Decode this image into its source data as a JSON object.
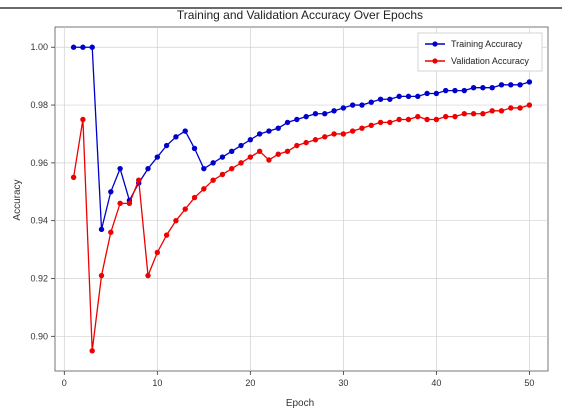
{
  "chart_data": {
    "type": "line",
    "title": "Training and Validation Accuracy Over Epochs",
    "xlabel": "Epoch",
    "ylabel": "Accuracy",
    "xlim": [
      -1,
      52
    ],
    "ylim": [
      0.888,
      1.007
    ],
    "xticks": [
      0,
      10,
      20,
      30,
      40,
      50
    ],
    "yticks": [
      0.9,
      0.92,
      0.94,
      0.96,
      0.98,
      1.0
    ],
    "ytick_labels": [
      "0.90",
      "0.92",
      "0.94",
      "0.96",
      "0.98",
      "1.00"
    ],
    "grid": true,
    "legend_position": "top-right",
    "x": [
      1,
      2,
      3,
      4,
      5,
      6,
      7,
      8,
      9,
      10,
      11,
      12,
      13,
      14,
      15,
      16,
      17,
      18,
      19,
      20,
      21,
      22,
      23,
      24,
      25,
      26,
      27,
      28,
      29,
      30,
      31,
      32,
      33,
      34,
      35,
      36,
      37,
      38,
      39,
      40,
      41,
      42,
      43,
      44,
      45,
      46,
      47,
      48,
      49,
      50
    ],
    "series": [
      {
        "name": "Training Accuracy",
        "color": "#0000cc",
        "values": [
          1.0,
          1.0,
          1.0,
          0.937,
          0.95,
          0.958,
          0.947,
          0.953,
          0.958,
          0.962,
          0.966,
          0.969,
          0.971,
          0.965,
          0.958,
          0.96,
          0.962,
          0.964,
          0.966,
          0.968,
          0.97,
          0.971,
          0.972,
          0.974,
          0.975,
          0.976,
          0.977,
          0.977,
          0.978,
          0.979,
          0.98,
          0.98,
          0.981,
          0.982,
          0.982,
          0.983,
          0.983,
          0.983,
          0.984,
          0.984,
          0.985,
          0.985,
          0.985,
          0.986,
          0.986,
          0.986,
          0.987,
          0.987,
          0.987,
          0.988
        ]
      },
      {
        "name": "Validation Accuracy",
        "color": "#ee0000",
        "values": [
          0.955,
          0.975,
          0.895,
          0.921,
          0.936,
          0.946,
          0.946,
          0.954,
          0.921,
          0.929,
          0.935,
          0.94,
          0.944,
          0.948,
          0.951,
          0.954,
          0.956,
          0.958,
          0.96,
          0.962,
          0.964,
          0.961,
          0.963,
          0.964,
          0.966,
          0.967,
          0.968,
          0.969,
          0.97,
          0.97,
          0.971,
          0.972,
          0.973,
          0.974,
          0.974,
          0.975,
          0.975,
          0.976,
          0.975,
          0.975,
          0.976,
          0.976,
          0.977,
          0.977,
          0.977,
          0.978,
          0.978,
          0.979,
          0.979,
          0.98
        ]
      }
    ]
  }
}
